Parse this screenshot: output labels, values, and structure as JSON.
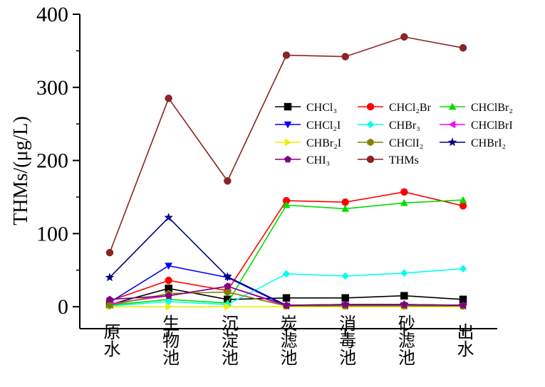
{
  "chart_data": {
    "type": "line",
    "title": "",
    "xlabel": "",
    "ylabel": "THMs/(μg/L)",
    "ylim": [
      -30,
      400
    ],
    "yticks": [
      0,
      100,
      200,
      300,
      400
    ],
    "grid": false,
    "legend_position": "top-right",
    "categories": [
      "原水",
      "生物池",
      "沉淀池",
      "炭滤池",
      "消毒池",
      "砂滤池",
      "出水"
    ],
    "series": [
      {
        "name": "CHCl₃",
        "color": "#000000",
        "marker": "square",
        "values": [
          3,
          25,
          10,
          12,
          12,
          15,
          10
        ]
      },
      {
        "name": "CHCl₂Br",
        "color": "#ff0000",
        "marker": "circle",
        "values": [
          8,
          36,
          22,
          145,
          143,
          157,
          138
        ]
      },
      {
        "name": "CHClBr₂",
        "color": "#00dd00",
        "marker": "triangle-up",
        "values": [
          2,
          10,
          5,
          139,
          134,
          142,
          146
        ]
      },
      {
        "name": "CHCl₂I",
        "color": "#0000ff",
        "marker": "triangle-down",
        "values": [
          6,
          56,
          40,
          1,
          2,
          2,
          1
        ]
      },
      {
        "name": "CHBr₃",
        "color": "#00ffee",
        "marker": "diamond",
        "values": [
          1,
          7,
          3,
          45,
          42,
          46,
          52
        ]
      },
      {
        "name": "CHClBrI",
        "color": "#ff00ff",
        "marker": "triangle-left",
        "values": [
          4,
          15,
          28,
          1,
          1,
          1,
          1
        ]
      },
      {
        "name": "CHBr₂I",
        "color": "#eeee00",
        "marker": "triangle-right",
        "values": [
          0,
          0,
          0,
          0,
          0,
          0,
          0
        ]
      },
      {
        "name": "CHClI₂",
        "color": "#808000",
        "marker": "hexagon",
        "values": [
          2,
          18,
          20,
          1,
          1,
          1,
          1
        ]
      },
      {
        "name": "CHBrI₂",
        "color": "#000080",
        "marker": "star",
        "values": [
          40,
          122,
          41,
          2,
          3,
          3,
          2
        ]
      },
      {
        "name": "CHI₃",
        "color": "#800080",
        "marker": "pentagon",
        "values": [
          10,
          15,
          28,
          2,
          3,
          3,
          2
        ]
      },
      {
        "name": "THMs",
        "color": "#8b2323",
        "marker": "circle",
        "values": [
          74,
          285,
          172,
          344,
          342,
          369,
          354
        ]
      }
    ]
  }
}
